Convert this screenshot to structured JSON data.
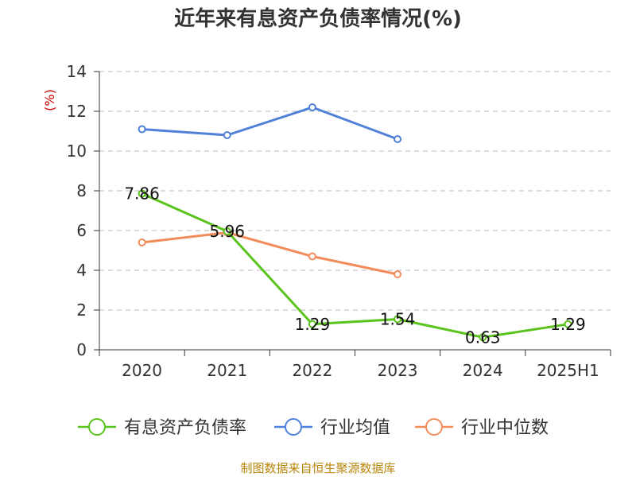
{
  "chart_data": {
    "type": "line",
    "title": "近年来有息资产负债率情况(%)",
    "unit_label": "(%)",
    "categories": [
      "2020",
      "2021",
      "2022",
      "2023",
      "2024",
      "2025H1"
    ],
    "ylim": [
      0,
      14
    ],
    "yticks": [
      0,
      2,
      4,
      6,
      8,
      10,
      12,
      14
    ],
    "grid": true,
    "legend_position": "bottom",
    "series": [
      {
        "name": "有息资产负债率",
        "color": "#5ac31d",
        "values": [
          7.86,
          5.96,
          1.29,
          1.54,
          0.63,
          1.29
        ],
        "data_labels": [
          "7.86",
          "5.96",
          "1.29",
          "1.54",
          "0.63",
          "1.29"
        ]
      },
      {
        "name": "行业均值",
        "color": "#4f81d9",
        "values": [
          11.1,
          10.8,
          12.2,
          10.6,
          null,
          null
        ]
      },
      {
        "name": "行业中位数",
        "color": "#f28c5a",
        "values": [
          5.4,
          5.9,
          4.7,
          3.8,
          null,
          null
        ]
      }
    ],
    "source": "制图数据来自恒生聚源数据库"
  }
}
